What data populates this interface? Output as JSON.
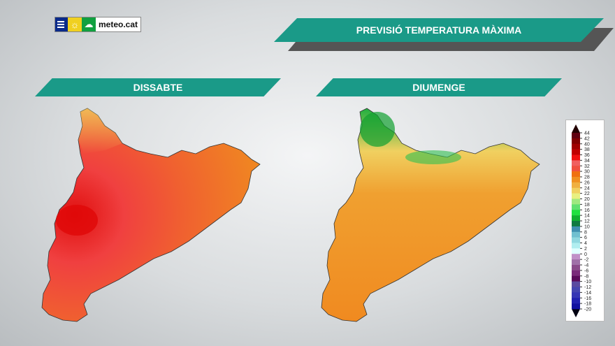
{
  "logo": {
    "text": "meteo.cat"
  },
  "header": {
    "title": "PREVISIÓ TEMPERATURA MÀXIMA"
  },
  "maps": [
    {
      "day": "DISSABTE",
      "dominant_colors": [
        "#f07a20",
        "#f05040",
        "#e01010"
      ]
    },
    {
      "day": "DIUMENGE",
      "dominant_colors": [
        "#f08a20",
        "#f0c050",
        "#20c040"
      ]
    }
  ],
  "legend": {
    "ticks": [
      "44",
      "42",
      "40",
      "38",
      "36",
      "34",
      "32",
      "30",
      "28",
      "26",
      "24",
      "22",
      "20",
      "18",
      "16",
      "14",
      "12",
      "10",
      "8",
      "6",
      "4",
      "2",
      "0",
      "-2",
      "-4",
      "-6",
      "-8",
      "-10",
      "-12",
      "-14",
      "-16",
      "-18",
      "-20"
    ],
    "colors": [
      "#600010",
      "#800000",
      "#a00000",
      "#c00000",
      "#f01010",
      "#f06060",
      "#f05040",
      "#f07010",
      "#f09020",
      "#f0b040",
      "#f0d060",
      "#e8f080",
      "#a0e880",
      "#60e070",
      "#20e040",
      "#10b030",
      "#107a40",
      "#4090b0",
      "#70c0d0",
      "#90d8e0",
      "#b0eef0",
      "#e0ffff",
      "#c090c8",
      "#a070a8",
      "#8a4a8a",
      "#7a2a7a",
      "#5a0a5a",
      "#5a4aa0",
      "#4545b0",
      "#3535b5",
      "#2020b0",
      "#1010a0"
    ]
  }
}
